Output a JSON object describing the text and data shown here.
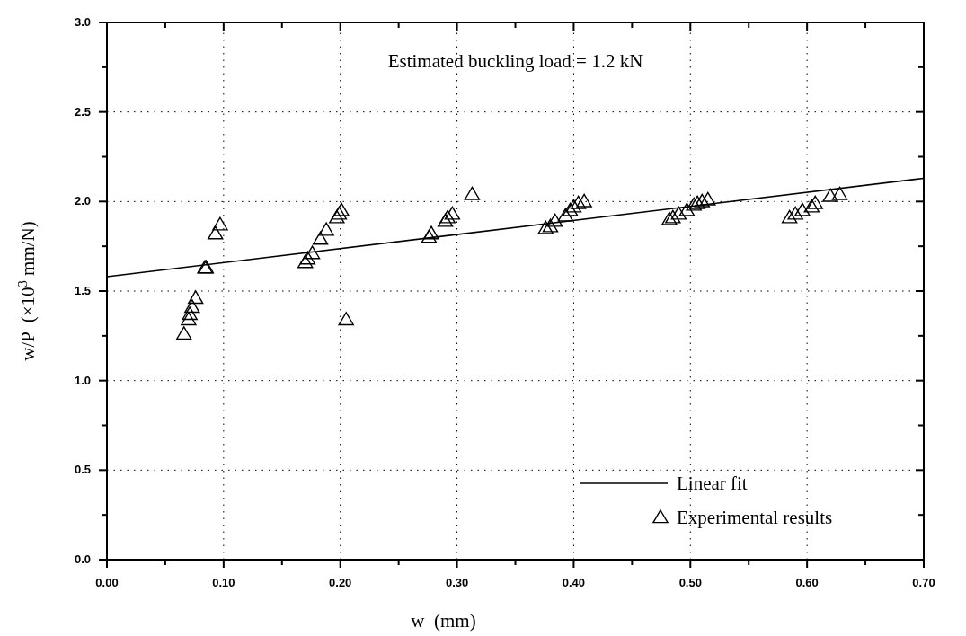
{
  "chart_data": {
    "type": "scatter",
    "xlabel": "w  (mm)",
    "ylabel": "w/P  (×10$^{3}$ mm/N)",
    "annotations": [
      "Estimated buckling load = 1.2 kN"
    ],
    "xlim": [
      0,
      0.7
    ],
    "ylim": [
      0,
      3.0
    ],
    "xticks": [
      {
        "value": 0,
        "label": "0.00"
      },
      {
        "value": 0.05,
        "label": null
      },
      {
        "value": 0.1,
        "label": "0.10"
      },
      {
        "value": 0.15,
        "label": null
      },
      {
        "value": 0.2,
        "label": "0.20"
      },
      {
        "value": 0.25,
        "label": null
      },
      {
        "value": 0.3,
        "label": "0.30"
      },
      {
        "value": 0.35,
        "label": null
      },
      {
        "value": 0.4,
        "label": "0.40"
      },
      {
        "value": 0.45,
        "label": null
      },
      {
        "value": 0.5,
        "label": "0.50"
      },
      {
        "value": 0.55,
        "label": null
      },
      {
        "value": 0.6,
        "label": "0.60"
      },
      {
        "value": 0.65,
        "label": null
      },
      {
        "value": 0.7,
        "label": "0.70"
      }
    ],
    "yticks": [
      {
        "value": 0,
        "label": "0.0"
      },
      {
        "value": 0.25,
        "label": null
      },
      {
        "value": 0.5,
        "label": "0.5"
      },
      {
        "value": 0.75,
        "label": null
      },
      {
        "value": 1,
        "label": "1.0"
      },
      {
        "value": 1.25,
        "label": null
      },
      {
        "value": 1.5,
        "label": "1.5"
      },
      {
        "value": 1.75,
        "label": null
      },
      {
        "value": 2,
        "label": "2.0"
      },
      {
        "value": 2.25,
        "label": null
      },
      {
        "value": 2.5,
        "label": "2.5"
      },
      {
        "value": 2.75,
        "label": null
      },
      {
        "value": 3,
        "label": "3.0"
      }
    ],
    "grid": true,
    "legend": "bottom right",
    "line_style": "solid",
    "series": [
      {
        "name": "Linear fit",
        "type": "line",
        "color": "#000000",
        "x": [
          0,
          0.7
        ],
        "values": [
          1.58,
          2.13
        ]
      },
      {
        "name": "Experimental results",
        "marker": "triangle",
        "color": "#000000",
        "x": [
          0.066,
          0.07,
          0.071,
          0.073,
          0.076,
          0.084,
          0.085,
          0.093,
          0.097,
          0.17,
          0.172,
          0.176,
          0.183,
          0.188,
          0.197,
          0.199,
          0.201,
          0.205,
          0.276,
          0.278,
          0.29,
          0.292,
          0.296,
          0.313,
          0.376,
          0.38,
          0.384,
          0.393,
          0.397,
          0.4,
          0.404,
          0.409,
          0.482,
          0.485,
          0.49,
          0.497,
          0.503,
          0.506,
          0.51,
          0.515,
          0.585,
          0.59,
          0.596,
          0.604,
          0.607,
          0.62,
          0.628
        ],
        "values": [
          1.26,
          1.34,
          1.37,
          1.41,
          1.46,
          1.63,
          1.63,
          1.82,
          1.87,
          1.66,
          1.68,
          1.71,
          1.79,
          1.84,
          1.91,
          1.93,
          1.95,
          1.34,
          1.8,
          1.82,
          1.89,
          1.91,
          1.93,
          2.04,
          1.85,
          1.86,
          1.89,
          1.92,
          1.95,
          1.97,
          1.99,
          2.0,
          1.9,
          1.91,
          1.93,
          1.95,
          1.98,
          1.99,
          2.0,
          2.01,
          1.91,
          1.93,
          1.95,
          1.97,
          1.99,
          2.03,
          2.04
        ]
      }
    ]
  }
}
